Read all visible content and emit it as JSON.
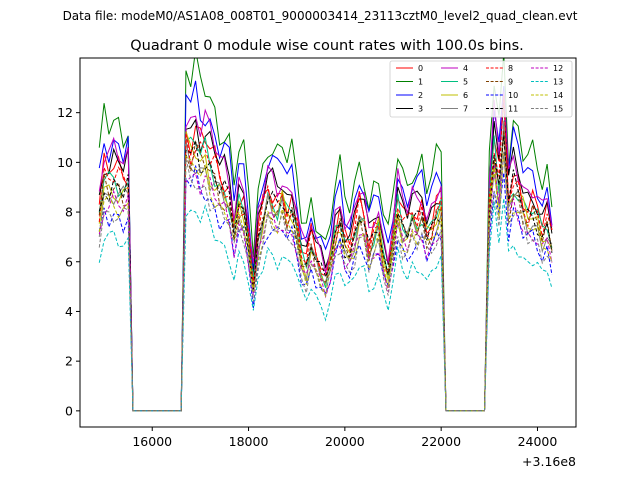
{
  "figure": {
    "file_label": "Data file: modeM0/AS1A08_008T01_9000003414_23113cztM0_level2_quad_clean.evt"
  },
  "chart_data": {
    "type": "line",
    "title": "Quadrant 0 module wise count rates with 100.0s bins.",
    "xlabel": "",
    "ylabel": "",
    "x_offset_label": "+3.16e8",
    "xlim": [
      14500,
      24800
    ],
    "ylim": [
      -0.65,
      14.2
    ],
    "x_ticks": [
      16000,
      18000,
      20000,
      22000,
      24000
    ],
    "x_tick_labels": [
      "16000",
      "18000",
      "20000",
      "22000",
      "24000"
    ],
    "y_ticks": [
      0,
      2,
      4,
      6,
      8,
      10,
      12
    ],
    "y_tick_labels": [
      "0",
      "2",
      "4",
      "6",
      "8",
      "10",
      "12"
    ],
    "grid": false,
    "legend_position": "top-right",
    "x": [
      14900,
      15000,
      15100,
      15200,
      15300,
      15400,
      15500,
      15600,
      15700,
      15800,
      15900,
      16000,
      16100,
      16200,
      16300,
      16400,
      16500,
      16600,
      16700,
      16800,
      16900,
      17000,
      17100,
      17200,
      17300,
      17400,
      17500,
      17600,
      17700,
      17800,
      17900,
      18000,
      18100,
      18200,
      18300,
      18400,
      18500,
      18600,
      18700,
      18800,
      18900,
      19000,
      19100,
      19200,
      19300,
      19400,
      19500,
      19600,
      19700,
      19800,
      19900,
      20000,
      20100,
      20200,
      20300,
      20400,
      20500,
      20600,
      20700,
      20800,
      20900,
      21000,
      21100,
      21200,
      21300,
      21400,
      21500,
      21600,
      21700,
      21800,
      21900,
      22000,
      22100,
      22200,
      22300,
      22400,
      22500,
      22600,
      22700,
      22800,
      22900,
      23000,
      23100,
      23200,
      23300,
      23400,
      23500,
      23600,
      23700,
      23800,
      23900,
      24000,
      24100,
      24200,
      24300
    ],
    "active_segments": [
      [
        0,
        6
      ],
      [
        18,
        71
      ],
      [
        81,
        94
      ]
    ],
    "series": [
      {
        "name": "0",
        "color": "#ff0000",
        "dash": "solid",
        "base": 8.3,
        "amp": 0.55,
        "phase": 0.0
      },
      {
        "name": "1",
        "color": "#008000",
        "dash": "solid",
        "base": 10.0,
        "amp": 0.65,
        "phase": 0.7
      },
      {
        "name": "2",
        "color": "#0000ff",
        "dash": "solid",
        "base": 9.3,
        "amp": 0.6,
        "phase": 1.4
      },
      {
        "name": "3",
        "color": "#000000",
        "dash": "solid",
        "base": 8.6,
        "amp": 0.55,
        "phase": 2.1
      },
      {
        "name": "4",
        "color": "#bf00bf",
        "dash": "solid",
        "base": 8.8,
        "amp": 0.55,
        "phase": 2.8
      },
      {
        "name": "5",
        "color": "#00bf80",
        "dash": "solid",
        "base": 7.9,
        "amp": 0.5,
        "phase": 3.5
      },
      {
        "name": "6",
        "color": "#bfbf00",
        "dash": "solid",
        "base": 7.7,
        "amp": 0.5,
        "phase": 4.2
      },
      {
        "name": "7",
        "color": "#808080",
        "dash": "solid",
        "base": 7.5,
        "amp": 0.5,
        "phase": 4.9
      },
      {
        "name": "8",
        "color": "#ff0000",
        "dash": "dashed",
        "base": 8.0,
        "amp": 0.5,
        "phase": 5.6
      },
      {
        "name": "9",
        "color": "#804000",
        "dash": "dashed",
        "base": 7.6,
        "amp": 0.5,
        "phase": 0.35
      },
      {
        "name": "10",
        "color": "#0000ff",
        "dash": "dashed",
        "base": 6.8,
        "amp": 0.6,
        "phase": 1.05
      },
      {
        "name": "11",
        "color": "#000000",
        "dash": "dashed",
        "base": 7.8,
        "amp": 0.5,
        "phase": 1.75
      },
      {
        "name": "12",
        "color": "#bf00bf",
        "dash": "dashed",
        "base": 7.1,
        "amp": 0.45,
        "phase": 2.45
      },
      {
        "name": "13",
        "color": "#00bfbf",
        "dash": "dashed",
        "base": 5.9,
        "amp": 0.45,
        "phase": 3.15
      },
      {
        "name": "14",
        "color": "#bfbf00",
        "dash": "dashed",
        "base": 7.2,
        "amp": 0.45,
        "phase": 3.85
      },
      {
        "name": "15",
        "color": "#808080",
        "dash": "dashed",
        "base": 6.9,
        "amp": 0.45,
        "phase": 4.55
      }
    ],
    "shape_profile": [
      1.0,
      1.18,
      1.15,
      1.17,
      1.16,
      1.13,
      1.16,
      0,
      0,
      0,
      0,
      0,
      0,
      0,
      0,
      0,
      0,
      0,
      1.38,
      1.32,
      1.36,
      1.3,
      1.31,
      1.25,
      1.21,
      1.15,
      1.12,
      1.08,
      0.92,
      1.05,
      1.02,
      0.87,
      0.64,
      0.88,
      0.99,
      1.1,
      1.06,
      1.04,
      1.08,
      1.0,
      1.02,
      0.93,
      0.78,
      0.74,
      0.86,
      0.78,
      0.72,
      0.67,
      0.77,
      0.9,
      0.96,
      0.85,
      0.82,
      0.9,
      1.01,
      0.97,
      0.82,
      0.9,
      0.94,
      0.78,
      0.7,
      0.87,
      1.04,
      0.95,
      0.92,
      0.99,
      0.96,
      1.01,
      0.9,
      0.93,
      1.0,
      1.04,
      0,
      0,
      0,
      0,
      0,
      0,
      0,
      0,
      0,
      1.05,
      1.33,
      1.15,
      1.48,
      1.06,
      1.16,
      1.13,
      1.04,
      1.0,
      1.02,
      0.98,
      0.9,
      0.96,
      0.85
    ]
  }
}
